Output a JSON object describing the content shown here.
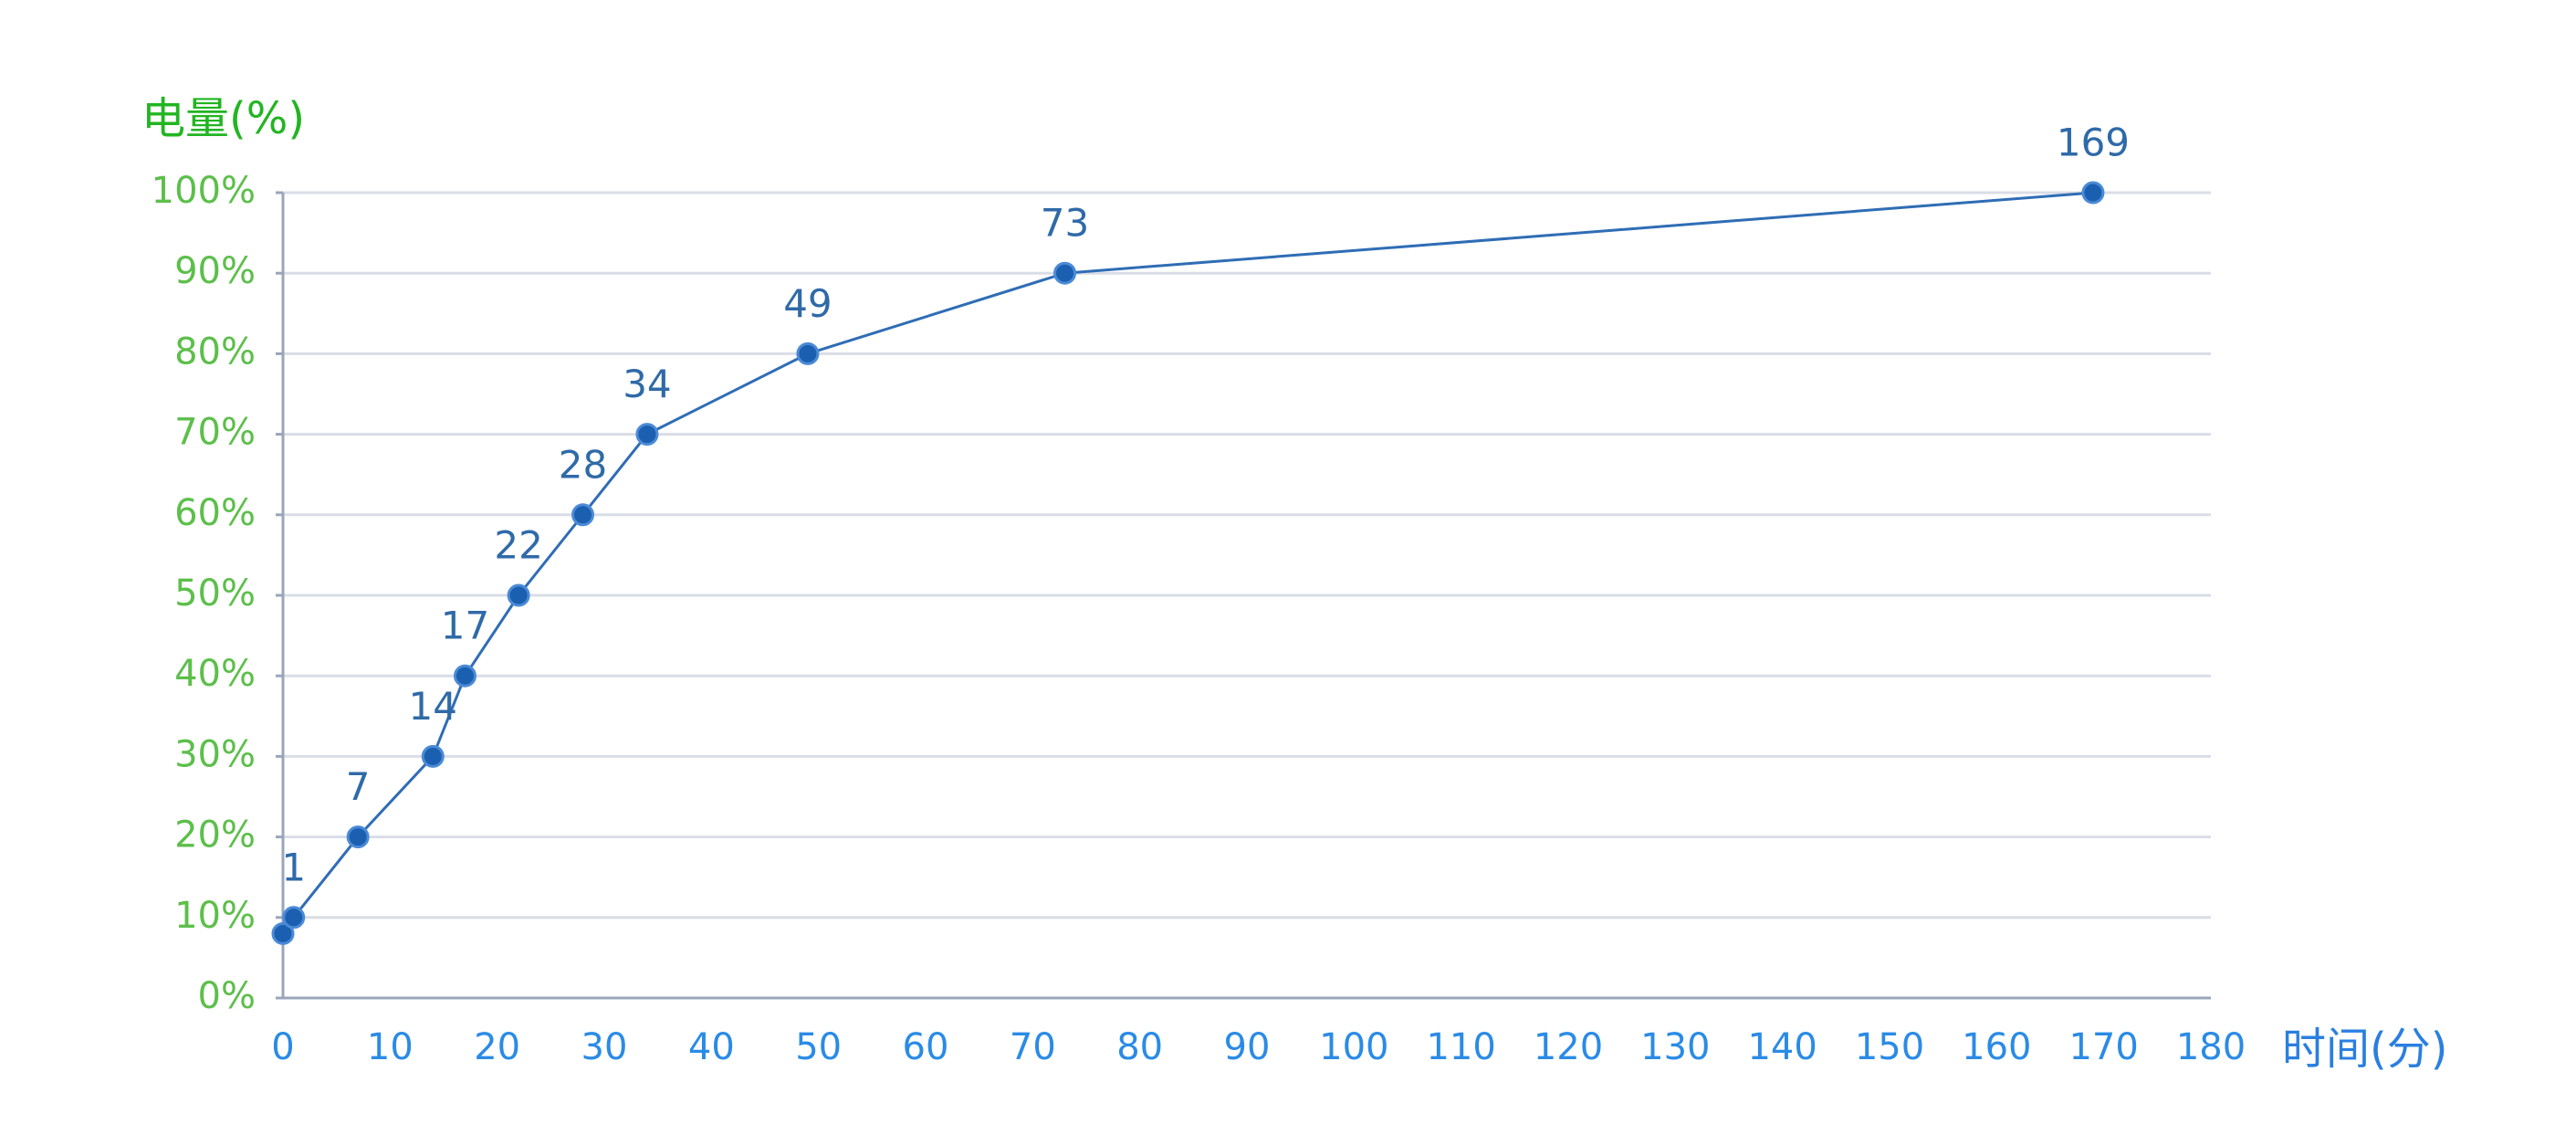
{
  "chart_data": {
    "type": "line",
    "y_axis_title": "电量(%)",
    "x_axis_title": "时间(分)",
    "x": [
      0,
      1,
      7,
      14,
      17,
      22,
      28,
      34,
      49,
      73,
      169
    ],
    "x_labels": [
      null,
      "1",
      "7",
      "14",
      "17",
      "22",
      "28",
      "34",
      "49",
      "73",
      "169"
    ],
    "series": [
      {
        "color": "#2f6db5",
        "values": [
          8,
          10,
          20,
          30,
          40,
          50,
          60,
          70,
          80,
          90,
          100
        ]
      }
    ],
    "xlim": [
      0,
      180
    ],
    "xticks": [
      0,
      10,
      20,
      30,
      40,
      50,
      60,
      70,
      80,
      90,
      100,
      110,
      120,
      130,
      140,
      150,
      160,
      170,
      180
    ],
    "ylim": [
      0,
      100
    ],
    "yticks": [
      {
        "value": 0,
        "label": "0%"
      },
      {
        "value": 10,
        "label": "10%"
      },
      {
        "value": 20,
        "label": "20%"
      },
      {
        "value": 30,
        "label": "30%"
      },
      {
        "value": 40,
        "label": "40%"
      },
      {
        "value": 50,
        "label": "50%"
      },
      {
        "value": 60,
        "label": "60%"
      },
      {
        "value": 70,
        "label": "70%"
      },
      {
        "value": 80,
        "label": "80%"
      },
      {
        "value": 90,
        "label": "90%"
      },
      {
        "value": 100,
        "label": "100%"
      }
    ],
    "grid": true
  }
}
